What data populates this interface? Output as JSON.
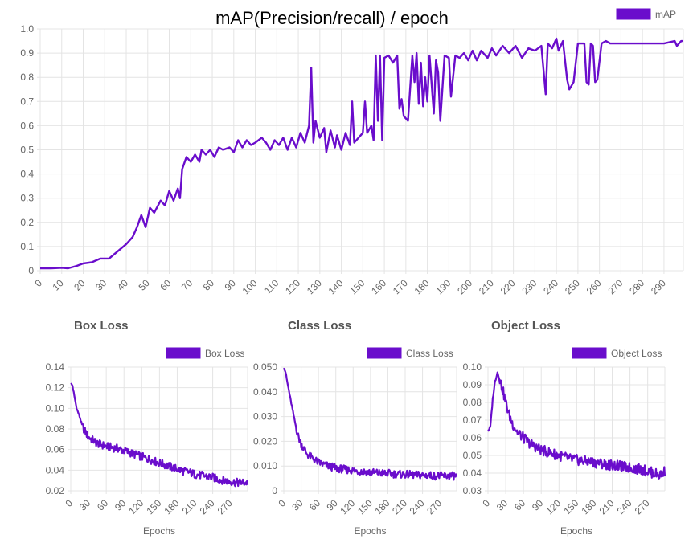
{
  "chart_data": [
    {
      "id": "map",
      "type": "line",
      "title": "mAP(Precision/recall) / epoch",
      "xlabel": "",
      "ylabel": "",
      "series": [
        {
          "name": "mAP",
          "color": "#6a0dcc"
        }
      ],
      "xlim": [
        0,
        299
      ],
      "ylim": [
        0,
        1.0
      ],
      "x_ticks": [
        0,
        10,
        20,
        30,
        40,
        50,
        60,
        70,
        80,
        90,
        100,
        110,
        120,
        130,
        140,
        150,
        160,
        170,
        180,
        190,
        200,
        210,
        220,
        230,
        240,
        250,
        260,
        270,
        280,
        290
      ],
      "y_ticks": [
        0,
        0.1,
        0.2,
        0.3,
        0.4,
        0.5,
        0.6,
        0.7,
        0.8,
        0.9,
        1.0
      ],
      "y_tick_labels": [
        "0",
        "0.1",
        "0.2",
        "0.3",
        "0.4",
        "0.5",
        "0.6",
        "0.7",
        "0.8",
        "0.9",
        "1.0"
      ],
      "legend": "top-right",
      "grid": true,
      "points": [
        [
          0,
          0.01
        ],
        [
          5,
          0.01
        ],
        [
          10,
          0.012
        ],
        [
          13,
          0.01
        ],
        [
          17,
          0.02
        ],
        [
          20,
          0.03
        ],
        [
          24,
          0.035
        ],
        [
          28,
          0.05
        ],
        [
          32,
          0.05
        ],
        [
          36,
          0.08
        ],
        [
          40,
          0.11
        ],
        [
          43,
          0.14
        ],
        [
          45,
          0.18
        ],
        [
          47,
          0.23
        ],
        [
          49,
          0.18
        ],
        [
          51,
          0.26
        ],
        [
          53,
          0.24
        ],
        [
          56,
          0.29
        ],
        [
          58,
          0.27
        ],
        [
          60,
          0.33
        ],
        [
          62,
          0.29
        ],
        [
          64,
          0.34
        ],
        [
          65,
          0.3
        ],
        [
          66,
          0.42
        ],
        [
          68,
          0.47
        ],
        [
          70,
          0.45
        ],
        [
          72,
          0.48
        ],
        [
          74,
          0.45
        ],
        [
          75,
          0.5
        ],
        [
          77,
          0.48
        ],
        [
          79,
          0.5
        ],
        [
          81,
          0.47
        ],
        [
          83,
          0.51
        ],
        [
          85,
          0.5
        ],
        [
          88,
          0.51
        ],
        [
          90,
          0.49
        ],
        [
          92,
          0.54
        ],
        [
          94,
          0.51
        ],
        [
          96,
          0.54
        ],
        [
          98,
          0.52
        ],
        [
          100,
          0.53
        ],
        [
          103,
          0.55
        ],
        [
          105,
          0.53
        ],
        [
          107,
          0.5
        ],
        [
          109,
          0.54
        ],
        [
          111,
          0.52
        ],
        [
          113,
          0.55
        ],
        [
          115,
          0.5
        ],
        [
          117,
          0.55
        ],
        [
          119,
          0.51
        ],
        [
          121,
          0.57
        ],
        [
          123,
          0.53
        ],
        [
          125,
          0.6
        ],
        [
          126,
          0.84
        ],
        [
          127,
          0.53
        ],
        [
          128,
          0.62
        ],
        [
          130,
          0.55
        ],
        [
          132,
          0.59
        ],
        [
          133,
          0.49
        ],
        [
          135,
          0.58
        ],
        [
          137,
          0.51
        ],
        [
          138,
          0.56
        ],
        [
          140,
          0.5
        ],
        [
          142,
          0.57
        ],
        [
          144,
          0.52
        ],
        [
          145,
          0.7
        ],
        [
          146,
          0.53
        ],
        [
          148,
          0.55
        ],
        [
          150,
          0.57
        ],
        [
          151,
          0.7
        ],
        [
          152,
          0.57
        ],
        [
          154,
          0.6
        ],
        [
          155,
          0.54
        ],
        [
          156,
          0.89
        ],
        [
          157,
          0.62
        ],
        [
          158,
          0.89
        ],
        [
          159,
          0.54
        ],
        [
          160,
          0.88
        ],
        [
          162,
          0.89
        ],
        [
          164,
          0.86
        ],
        [
          166,
          0.89
        ],
        [
          167,
          0.67
        ],
        [
          168,
          0.71
        ],
        [
          169,
          0.64
        ],
        [
          171,
          0.62
        ],
        [
          173,
          0.89
        ],
        [
          174,
          0.78
        ],
        [
          175,
          0.9
        ],
        [
          176,
          0.69
        ],
        [
          177,
          0.86
        ],
        [
          178,
          0.68
        ],
        [
          179,
          0.8
        ],
        [
          180,
          0.7
        ],
        [
          181,
          0.89
        ],
        [
          183,
          0.65
        ],
        [
          184,
          0.87
        ],
        [
          185,
          0.82
        ],
        [
          186,
          0.62
        ],
        [
          188,
          0.89
        ],
        [
          190,
          0.88
        ],
        [
          191,
          0.72
        ],
        [
          193,
          0.89
        ],
        [
          195,
          0.88
        ],
        [
          197,
          0.9
        ],
        [
          199,
          0.87
        ],
        [
          201,
          0.91
        ],
        [
          203,
          0.87
        ],
        [
          205,
          0.91
        ],
        [
          208,
          0.88
        ],
        [
          210,
          0.92
        ],
        [
          212,
          0.89
        ],
        [
          215,
          0.93
        ],
        [
          218,
          0.9
        ],
        [
          221,
          0.93
        ],
        [
          224,
          0.88
        ],
        [
          227,
          0.92
        ],
        [
          230,
          0.91
        ],
        [
          233,
          0.93
        ],
        [
          235,
          0.73
        ],
        [
          236,
          0.94
        ],
        [
          238,
          0.92
        ],
        [
          240,
          0.96
        ],
        [
          241,
          0.91
        ],
        [
          243,
          0.95
        ],
        [
          245,
          0.79
        ],
        [
          246,
          0.75
        ],
        [
          248,
          0.78
        ],
        [
          250,
          0.94
        ],
        [
          253,
          0.94
        ],
        [
          254,
          0.78
        ],
        [
          255,
          0.77
        ],
        [
          256,
          0.94
        ],
        [
          257,
          0.93
        ],
        [
          258,
          0.78
        ],
        [
          259,
          0.79
        ],
        [
          261,
          0.94
        ],
        [
          263,
          0.95
        ],
        [
          265,
          0.94
        ],
        [
          270,
          0.94
        ],
        [
          280,
          0.94
        ],
        [
          290,
          0.94
        ],
        [
          295,
          0.95
        ],
        [
          296,
          0.93
        ],
        [
          298,
          0.95
        ],
        [
          299,
          0.95
        ]
      ]
    },
    {
      "id": "box",
      "type": "line",
      "title": "Box Loss",
      "xlabel": "Epochs",
      "ylabel": "",
      "series": [
        {
          "name": "Box Loss",
          "color": "#6a0dcc"
        }
      ],
      "xlim": [
        0,
        299
      ],
      "ylim": [
        0.02,
        0.14
      ],
      "x_ticks": [
        0,
        30,
        60,
        90,
        120,
        150,
        180,
        210,
        240,
        270
      ],
      "y_ticks": [
        0.02,
        0.04,
        0.06,
        0.08,
        0.1,
        0.12,
        0.14
      ],
      "y_tick_labels": [
        "0.02",
        "0.04",
        "0.06",
        "0.08",
        "0.10",
        "0.12",
        "0.14"
      ],
      "legend": "top-right",
      "grid": true,
      "points": [
        [
          0,
          0.124
        ],
        [
          3,
          0.122
        ],
        [
          6,
          0.112
        ],
        [
          10,
          0.1
        ],
        [
          15,
          0.092
        ],
        [
          20,
          0.082
        ],
        [
          25,
          0.077
        ],
        [
          30,
          0.072
        ],
        [
          35,
          0.07
        ],
        [
          40,
          0.068
        ],
        [
          45,
          0.066
        ],
        [
          50,
          0.065
        ],
        [
          55,
          0.064
        ],
        [
          60,
          0.063
        ],
        [
          70,
          0.062
        ],
        [
          80,
          0.061
        ],
        [
          90,
          0.059
        ],
        [
          100,
          0.057
        ],
        [
          110,
          0.055
        ],
        [
          120,
          0.053
        ],
        [
          130,
          0.051
        ],
        [
          140,
          0.049
        ],
        [
          150,
          0.047
        ],
        [
          160,
          0.045
        ],
        [
          170,
          0.043
        ],
        [
          180,
          0.041
        ],
        [
          190,
          0.039
        ],
        [
          200,
          0.038
        ],
        [
          210,
          0.036
        ],
        [
          220,
          0.035
        ],
        [
          230,
          0.034
        ],
        [
          240,
          0.033
        ],
        [
          250,
          0.031
        ],
        [
          260,
          0.03
        ],
        [
          270,
          0.029
        ],
        [
          280,
          0.028
        ],
        [
          290,
          0.028
        ],
        [
          299,
          0.028
        ]
      ]
    },
    {
      "id": "class",
      "type": "line",
      "title": "Class Loss",
      "xlabel": "Epochs",
      "ylabel": "",
      "series": [
        {
          "name": "Class Loss",
          "color": "#6a0dcc"
        }
      ],
      "xlim": [
        0,
        299
      ],
      "ylim": [
        0,
        0.05
      ],
      "x_ticks": [
        0,
        30,
        60,
        90,
        120,
        150,
        180,
        210,
        240,
        270
      ],
      "y_ticks": [
        0,
        0.01,
        0.02,
        0.03,
        0.04,
        0.05
      ],
      "y_tick_labels": [
        "0",
        "0.010",
        "0.020",
        "0.030",
        "0.040",
        "0.050"
      ],
      "legend": "top-right",
      "grid": true,
      "points": [
        [
          0,
          0.05
        ],
        [
          3,
          0.048
        ],
        [
          6,
          0.044
        ],
        [
          10,
          0.039
        ],
        [
          15,
          0.033
        ],
        [
          20,
          0.027
        ],
        [
          25,
          0.022
        ],
        [
          30,
          0.019
        ],
        [
          35,
          0.017
        ],
        [
          40,
          0.015
        ],
        [
          50,
          0.013
        ],
        [
          60,
          0.0115
        ],
        [
          70,
          0.0105
        ],
        [
          80,
          0.0098
        ],
        [
          90,
          0.0092
        ],
        [
          100,
          0.0088
        ],
        [
          120,
          0.0082
        ],
        [
          140,
          0.0077
        ],
        [
          160,
          0.0073
        ],
        [
          180,
          0.007
        ],
        [
          200,
          0.0067
        ],
        [
          220,
          0.0065
        ],
        [
          240,
          0.0063
        ],
        [
          260,
          0.0061
        ],
        [
          280,
          0.006
        ],
        [
          299,
          0.006
        ]
      ]
    },
    {
      "id": "object",
      "type": "line",
      "title": "Object Loss",
      "xlabel": "Epochs",
      "ylabel": "",
      "series": [
        {
          "name": "Object Loss",
          "color": "#6a0dcc"
        }
      ],
      "xlim": [
        0,
        299
      ],
      "ylim": [
        0.03,
        0.1
      ],
      "x_ticks": [
        0,
        30,
        60,
        90,
        120,
        150,
        180,
        210,
        240,
        270
      ],
      "y_ticks": [
        0.03,
        0.04,
        0.05,
        0.06,
        0.07,
        0.08,
        0.09,
        0.1
      ],
      "y_tick_labels": [
        "0.03",
        "0.04",
        "0.05",
        "0.06",
        "0.07",
        "0.08",
        "0.09",
        "0.10"
      ],
      "legend": "top-right",
      "grid": true,
      "points": [
        [
          0,
          0.064
        ],
        [
          4,
          0.066
        ],
        [
          8,
          0.082
        ],
        [
          12,
          0.092
        ],
        [
          16,
          0.097
        ],
        [
          20,
          0.093
        ],
        [
          25,
          0.087
        ],
        [
          30,
          0.08
        ],
        [
          35,
          0.074
        ],
        [
          40,
          0.069
        ],
        [
          45,
          0.066
        ],
        [
          50,
          0.063
        ],
        [
          60,
          0.06
        ],
        [
          70,
          0.057
        ],
        [
          80,
          0.055
        ],
        [
          90,
          0.053
        ],
        [
          100,
          0.052
        ],
        [
          120,
          0.05
        ],
        [
          140,
          0.048
        ],
        [
          160,
          0.047
        ],
        [
          180,
          0.046
        ],
        [
          200,
          0.045
        ],
        [
          220,
          0.044
        ],
        [
          240,
          0.043
        ],
        [
          260,
          0.042
        ],
        [
          280,
          0.04
        ],
        [
          290,
          0.039
        ],
        [
          299,
          0.041
        ]
      ]
    }
  ]
}
